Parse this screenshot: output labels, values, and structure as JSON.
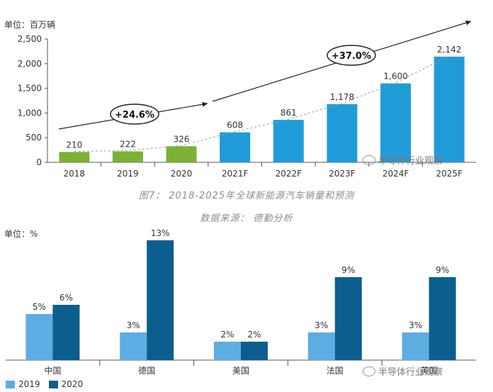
{
  "colors": {
    "green": "#7ab236",
    "blue": "#1f9cd8",
    "light_blue": "#5dade2",
    "dark_blue": "#0c5e8e",
    "axis": "#555555",
    "text": "#333333"
  },
  "captions": {
    "figure": "图7： 2018-2025年全球新能源汽车销量和预测",
    "source": "数据来源： 德勤分析"
  },
  "watermark": {
    "text1": "半导体行业观察",
    "text2": "半导体行业观察"
  },
  "chart_data": [
    {
      "type": "bar",
      "title": "",
      "unit_label": "单位：百万辆",
      "categories": [
        "2018",
        "2019",
        "2020",
        "2021F",
        "2022F",
        "2023F",
        "2024F",
        "2025F"
      ],
      "values": [
        210,
        222,
        326,
        608,
        861,
        1178,
        1600,
        2142
      ],
      "value_labels": [
        "210",
        "222",
        "326",
        "608",
        "861",
        "1,178",
        "1,600",
        "2,142"
      ],
      "bar_colors": [
        "green",
        "green",
        "green",
        "blue",
        "blue",
        "blue",
        "blue",
        "blue"
      ],
      "ylim": [
        0,
        2500
      ],
      "yticks": [
        0,
        500,
        1000,
        1500,
        2000,
        2500
      ],
      "ytick_labels": [
        "0",
        "500",
        "1,000",
        "1,500",
        "2,000",
        "2,500"
      ],
      "grid": false,
      "annotations": [
        {
          "text": "+24.6%",
          "kind": "growth-ellipse"
        },
        {
          "text": "+37.0%",
          "kind": "growth-ellipse"
        }
      ]
    },
    {
      "type": "bar",
      "title": "",
      "unit_label": "单位：%",
      "categories": [
        "中国",
        "德国",
        "美国",
        "法国",
        "英国"
      ],
      "series": [
        {
          "name": "2019",
          "values": [
            5,
            3,
            2,
            3,
            3
          ],
          "labels": [
            "5%",
            "3%",
            "2%",
            "3%",
            "3%"
          ],
          "color": "light_blue"
        },
        {
          "name": "2020",
          "values": [
            6,
            13,
            2,
            9,
            9
          ],
          "labels": [
            "6%",
            "13%",
            "2%",
            "9%",
            "9%"
          ],
          "color": "dark_blue"
        }
      ],
      "ylim": [
        0,
        13
      ],
      "grid": false,
      "legend": "bottom-left"
    }
  ]
}
